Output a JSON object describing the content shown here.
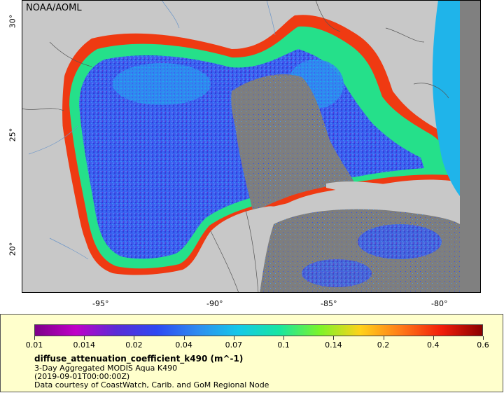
{
  "map": {
    "credit": "NOAA/AOML",
    "x_ticks": [
      "-95°",
      "-90°",
      "-85°",
      "-80°"
    ],
    "y_ticks": [
      "30°",
      "25°",
      "20°"
    ],
    "colors": {
      "land": "#c8c8c8",
      "no_data": "#808080",
      "border": "#555555"
    }
  },
  "legend": {
    "colorbar_ticks": [
      "0.01",
      "0.014",
      "0.02",
      "0.04",
      "0.07",
      "0.1",
      "0.14",
      "0.2",
      "0.4",
      "0.6"
    ],
    "variable": "diffuse_attenuation_coefficient_k490 (m^-1)",
    "line1": "3-Day Aggregated MODIS Aqua K490",
    "line2": "(2019-09-01T00:00:00Z)",
    "line3": "Data courtesy of CoastWatch, Carib. and GoM Regional Node",
    "colormap": [
      "#7d0089",
      "#c000c8",
      "#5a2cd6",
      "#2e49f2",
      "#2f8cf0",
      "#15c8e8",
      "#17e6a2",
      "#7cf42a",
      "#ffd21a",
      "#ff7a18",
      "#f21d0a",
      "#8a0000"
    ]
  }
}
